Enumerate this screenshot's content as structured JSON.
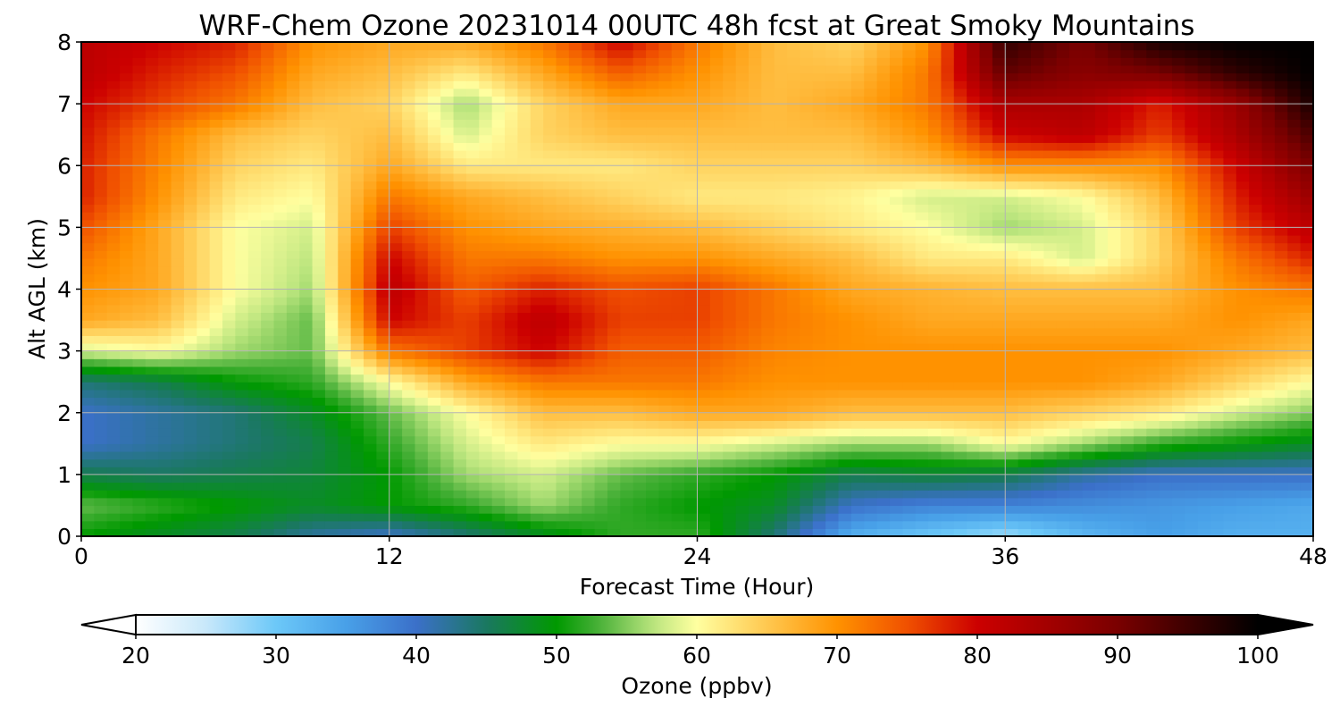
{
  "chart_data": {
    "type": "heatmap",
    "title": "WRF-Chem Ozone  20231014 00UTC 48h fcst at Great Smoky Mountains",
    "xlabel": "Forecast Time (Hour)",
    "ylabel": "Alt AGL (km)",
    "xlim": [
      0,
      48
    ],
    "ylim": [
      0,
      8
    ],
    "x_ticks": [
      "0",
      "12",
      "24",
      "36",
      "48"
    ],
    "y_ticks": [
      "0",
      "1",
      "2",
      "3",
      "4",
      "5",
      "6",
      "7",
      "8"
    ],
    "grid": true,
    "colorbar": {
      "label": "Ozone  (ppbv)",
      "range": [
        20,
        100
      ],
      "extend": "both",
      "ticks": [
        "20",
        "30",
        "40",
        "50",
        "60",
        "70",
        "80",
        "90",
        "100"
      ],
      "stops": [
        {
          "v": 20,
          "c": "#ffffff"
        },
        {
          "v": 25,
          "c": "#c8e8fa"
        },
        {
          "v": 30,
          "c": "#6cc8f8"
        },
        {
          "v": 35,
          "c": "#48a0e8"
        },
        {
          "v": 40,
          "c": "#3b70c9"
        },
        {
          "v": 45,
          "c": "#1a7860"
        },
        {
          "v": 50,
          "c": "#009900"
        },
        {
          "v": 53,
          "c": "#48b038"
        },
        {
          "v": 57,
          "c": "#bde67f"
        },
        {
          "v": 60,
          "c": "#ffffa0"
        },
        {
          "v": 65,
          "c": "#ffc850"
        },
        {
          "v": 70,
          "c": "#ff9200"
        },
        {
          "v": 75,
          "c": "#f05000"
        },
        {
          "v": 80,
          "c": "#cc0000"
        },
        {
          "v": 90,
          "c": "#7a0000"
        },
        {
          "v": 100,
          "c": "#000000"
        }
      ]
    },
    "x": [
      0,
      3,
      6,
      9,
      12,
      15,
      18,
      21,
      24,
      27,
      30,
      33,
      36,
      39,
      42,
      45,
      48
    ],
    "y": [
      0,
      0.5,
      1,
      1.5,
      2,
      2.5,
      3,
      3.5,
      4,
      4.5,
      5,
      5.5,
      6,
      6.5,
      7,
      7.5,
      8
    ],
    "z": [
      [
        50,
        48,
        46,
        42,
        40,
        44,
        48,
        52,
        52,
        44,
        33,
        30,
        27,
        32,
        35,
        33,
        33
      ],
      [
        54,
        52,
        50,
        48,
        50,
        52,
        56,
        52,
        50,
        48,
        40,
        38,
        38,
        37,
        36,
        35,
        34
      ],
      [
        46,
        45,
        46,
        47,
        50,
        56,
        58,
        54,
        52,
        50,
        46,
        47,
        46,
        42,
        40,
        40,
        40
      ],
      [
        40,
        42,
        44,
        46,
        52,
        58,
        62,
        60,
        60,
        58,
        56,
        56,
        60,
        56,
        52,
        50,
        48
      ],
      [
        40,
        42,
        44,
        48,
        54,
        60,
        66,
        66,
        68,
        68,
        66,
        66,
        66,
        64,
        62,
        58,
        55
      ],
      [
        44,
        46,
        50,
        52,
        60,
        68,
        72,
        72,
        72,
        70,
        70,
        70,
        70,
        70,
        68,
        64,
        60
      ],
      [
        58,
        60,
        56,
        54,
        72,
        76,
        80,
        74,
        74,
        71,
        70,
        70,
        70,
        70,
        70,
        68,
        66
      ],
      [
        68,
        66,
        58,
        54,
        80,
        76,
        82,
        76,
        76,
        72,
        70,
        68,
        68,
        68,
        68,
        70,
        68
      ],
      [
        70,
        68,
        60,
        56,
        82,
        74,
        78,
        75,
        76,
        72,
        68,
        67,
        66,
        66,
        66,
        70,
        72
      ],
      [
        72,
        68,
        60,
        57,
        80,
        72,
        72,
        70,
        70,
        68,
        66,
        62,
        62,
        58,
        64,
        72,
        78
      ],
      [
        75,
        68,
        60,
        58,
        76,
        70,
        68,
        67,
        66,
        64,
        62,
        60,
        56,
        58,
        64,
        76,
        82
      ],
      [
        78,
        70,
        62,
        60,
        72,
        68,
        66,
        64,
        62,
        62,
        61,
        58,
        58,
        60,
        66,
        78,
        86
      ],
      [
        78,
        71,
        64,
        62,
        68,
        62,
        62,
        62,
        64,
        64,
        64,
        66,
        70,
        70,
        70,
        80,
        90
      ],
      [
        79,
        72,
        66,
        64,
        66,
        58,
        64,
        66,
        66,
        66,
        66,
        70,
        80,
        82,
        76,
        84,
        94
      ],
      [
        80,
        76,
        72,
        66,
        64,
        56,
        64,
        68,
        68,
        66,
        68,
        72,
        84,
        84,
        78,
        86,
        98
      ],
      [
        82,
        78,
        75,
        68,
        66,
        62,
        68,
        74,
        70,
        66,
        66,
        72,
        92,
        88,
        90,
        96,
        100
      ],
      [
        82,
        80,
        78,
        70,
        68,
        68,
        72,
        80,
        72,
        66,
        64,
        70,
        96,
        90,
        98,
        100,
        100
      ]
    ]
  }
}
